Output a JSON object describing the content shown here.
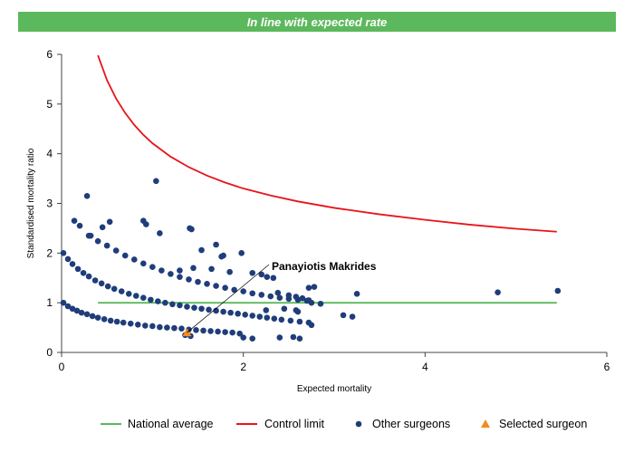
{
  "banner": {
    "text": "In line with expected rate",
    "color": "#5cb85c"
  },
  "chart_data": {
    "type": "scatter",
    "xlabel": "Expected mortality",
    "ylabel": "Standardised mortality ratio",
    "xlim": [
      0,
      6
    ],
    "ylim": [
      0,
      6
    ],
    "xticks": [
      0,
      2,
      4,
      6
    ],
    "yticks": [
      0,
      1,
      2,
      3,
      4,
      5,
      6
    ],
    "grid": false,
    "legend_position": "bottom",
    "colors": {
      "national": "#5cb85c",
      "control": "#e8141a",
      "others": "#1f3d7a",
      "selected": "#f28c1e"
    },
    "series": [
      {
        "name": "National average",
        "kind": "line",
        "x": [
          0.4,
          5.45
        ],
        "y": [
          1,
          1
        ]
      },
      {
        "name": "Control limit",
        "kind": "line",
        "x": [
          0.4,
          0.5,
          0.6,
          0.7,
          0.8,
          0.9,
          1.0,
          1.2,
          1.4,
          1.6,
          1.8,
          2.0,
          2.3,
          2.6,
          3.0,
          3.5,
          4.0,
          4.5,
          5.0,
          5.45
        ],
        "y": [
          5.98,
          5.48,
          5.11,
          4.82,
          4.58,
          4.38,
          4.21,
          3.94,
          3.73,
          3.56,
          3.42,
          3.3,
          3.16,
          3.04,
          2.91,
          2.78,
          2.67,
          2.57,
          2.49,
          2.43
        ]
      },
      {
        "name": "Other surgeons",
        "kind": "scatter",
        "x": [
          0.02,
          0.07,
          0.12,
          0.17,
          0.22,
          0.28,
          0.34,
          0.4,
          0.47,
          0.54,
          0.61,
          0.68,
          0.76,
          0.84,
          0.92,
          1.0,
          1.08,
          1.16,
          1.24,
          1.32,
          1.4,
          1.48,
          1.56,
          1.64,
          1.72,
          1.8,
          1.88,
          1.96,
          0.02,
          0.07,
          0.12,
          0.18,
          0.24,
          0.3,
          0.37,
          0.44,
          0.51,
          0.58,
          0.66,
          0.74,
          0.82,
          0.9,
          0.98,
          1.06,
          1.14,
          1.22,
          1.3,
          1.38,
          1.46,
          1.54,
          1.62,
          1.7,
          1.78,
          1.86,
          1.94,
          2.02,
          2.1,
          2.18,
          2.26,
          2.34,
          2.42,
          2.52,
          2.62,
          2.72,
          0.3,
          0.4,
          0.5,
          0.6,
          0.7,
          0.8,
          0.9,
          1.0,
          1.1,
          1.2,
          1.3,
          1.4,
          1.5,
          1.6,
          1.7,
          1.8,
          1.9,
          2.0,
          2.1,
          2.2,
          2.3,
          2.4,
          2.5,
          2.6,
          2.7,
          2.75,
          2.85,
          3.1,
          3.2,
          3.25,
          4.8,
          5.46,
          0.14,
          0.2,
          0.28,
          0.32,
          0.45,
          0.53,
          0.9,
          0.93,
          1.04,
          1.08,
          1.41,
          1.43,
          1.54,
          1.7,
          1.76,
          1.78,
          1.98,
          2.26,
          2.33,
          2.38,
          2.5,
          2.58,
          2.65,
          2.72,
          2.72,
          2.75,
          2.78,
          1.3,
          1.45,
          1.65,
          1.85,
          2.1,
          2.2,
          2.45,
          2.58,
          2.6,
          1.36,
          1.42,
          2.0,
          2.1,
          2.25,
          2.4,
          2.55,
          2.62
        ],
        "y": [
          1.0,
          0.93,
          0.88,
          0.84,
          0.8,
          0.77,
          0.73,
          0.7,
          0.67,
          0.64,
          0.62,
          0.6,
          0.58,
          0.56,
          0.54,
          0.53,
          0.51,
          0.5,
          0.49,
          0.48,
          0.46,
          0.45,
          0.44,
          0.43,
          0.42,
          0.41,
          0.4,
          0.38,
          2.0,
          1.88,
          1.78,
          1.68,
          1.6,
          1.53,
          1.45,
          1.39,
          1.33,
          1.28,
          1.23,
          1.18,
          1.14,
          1.1,
          1.06,
          1.03,
          1.0,
          0.97,
          0.95,
          0.92,
          0.9,
          0.88,
          0.86,
          0.84,
          0.82,
          0.8,
          0.78,
          0.76,
          0.74,
          0.72,
          0.7,
          0.68,
          0.66,
          0.64,
          0.62,
          0.6,
          2.35,
          2.24,
          2.15,
          2.05,
          1.95,
          1.87,
          1.79,
          1.72,
          1.65,
          1.58,
          1.52,
          1.47,
          1.42,
          1.38,
          1.34,
          1.3,
          1.26,
          1.23,
          1.19,
          1.16,
          1.13,
          1.1,
          1.08,
          1.06,
          1.04,
          1.0,
          0.98,
          0.75,
          0.72,
          1.18,
          1.21,
          1.24,
          2.65,
          2.55,
          3.15,
          2.35,
          2.52,
          2.63,
          2.65,
          2.58,
          3.45,
          2.4,
          2.5,
          2.48,
          2.06,
          2.17,
          1.93,
          1.95,
          2.0,
          1.52,
          1.5,
          1.2,
          1.15,
          1.12,
          1.09,
          1.05,
          1.3,
          0.55,
          1.32,
          1.65,
          1.7,
          1.68,
          1.62,
          1.6,
          1.57,
          0.88,
          0.85,
          0.82,
          0.35,
          0.33,
          0.3,
          0.28,
          0.85,
          0.3,
          0.31,
          0.28
        ]
      },
      {
        "name": "Selected surgeon",
        "kind": "marker",
        "x": [
          1.38
        ],
        "y": [
          0.4
        ]
      }
    ],
    "annotation": {
      "text": "Panayiotis Makrides",
      "x": 1.38,
      "y": 0.4
    }
  }
}
